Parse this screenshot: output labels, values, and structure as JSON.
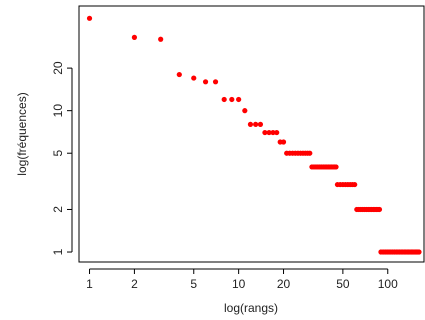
{
  "chart_data": {
    "type": "scatter",
    "xlabel": "log(rangs)",
    "ylabel": "log(fréquences)",
    "x_scale": "log",
    "y_scale": "log",
    "xlim": [
      0.85,
      175
    ],
    "ylim": [
      0.85,
      55
    ],
    "x_ticks": [
      1,
      2,
      5,
      10,
      20,
      50,
      100
    ],
    "y_ticks": [
      1,
      2,
      5,
      10,
      20
    ],
    "grid": false,
    "point_color": "#ff0000",
    "points": [
      {
        "x": 1,
        "y": 45
      },
      {
        "x": 2,
        "y": 33
      },
      {
        "x": 3,
        "y": 32
      },
      {
        "x": 4,
        "y": 18
      },
      {
        "x": 5,
        "y": 17
      },
      {
        "x": 6,
        "y": 16
      },
      {
        "x": 7,
        "y": 16
      },
      {
        "x": 8,
        "y": 12
      },
      {
        "x": 9,
        "y": 12
      },
      {
        "x": 10,
        "y": 12
      },
      {
        "x": 11,
        "y": 10
      },
      {
        "x": 12,
        "y": 8
      },
      {
        "x": 13,
        "y": 8
      },
      {
        "x": 14,
        "y": 8
      },
      {
        "x": 15,
        "y": 7
      },
      {
        "x": 16,
        "y": 7
      },
      {
        "x": 17,
        "y": 7
      },
      {
        "x": 18,
        "y": 7
      },
      {
        "x": 19,
        "y": 6
      },
      {
        "x": 20,
        "y": 6
      },
      {
        "x": 21,
        "y": 5
      },
      {
        "x": 22,
        "y": 5
      },
      {
        "x": 23,
        "y": 5
      },
      {
        "x": 24,
        "y": 5
      },
      {
        "x": 25,
        "y": 5
      },
      {
        "x": 26,
        "y": 5
      },
      {
        "x": 27,
        "y": 5
      },
      {
        "x": 28,
        "y": 5
      },
      {
        "x": 29,
        "y": 5
      },
      {
        "x": 30,
        "y": 5
      },
      {
        "x": 31,
        "y": 4
      },
      {
        "x": 32,
        "y": 4
      },
      {
        "x": 33,
        "y": 4
      },
      {
        "x": 34,
        "y": 4
      },
      {
        "x": 35,
        "y": 4
      },
      {
        "x": 36,
        "y": 4
      },
      {
        "x": 37,
        "y": 4
      },
      {
        "x": 38,
        "y": 4
      },
      {
        "x": 39,
        "y": 4
      },
      {
        "x": 40,
        "y": 4
      },
      {
        "x": 41,
        "y": 4
      },
      {
        "x": 42,
        "y": 4
      },
      {
        "x": 43,
        "y": 4
      },
      {
        "x": 44,
        "y": 4
      },
      {
        "x": 45,
        "y": 4
      },
      {
        "x": 46,
        "y": 3
      },
      {
        "x": 48,
        "y": 3
      },
      {
        "x": 50,
        "y": 3
      },
      {
        "x": 52,
        "y": 3
      },
      {
        "x": 54,
        "y": 3
      },
      {
        "x": 56,
        "y": 3
      },
      {
        "x": 58,
        "y": 3
      },
      {
        "x": 60,
        "y": 3
      },
      {
        "x": 62,
        "y": 2
      },
      {
        "x": 64,
        "y": 2
      },
      {
        "x": 66,
        "y": 2
      },
      {
        "x": 68,
        "y": 2
      },
      {
        "x": 70,
        "y": 2
      },
      {
        "x": 72,
        "y": 2
      },
      {
        "x": 74,
        "y": 2
      },
      {
        "x": 76,
        "y": 2
      },
      {
        "x": 78,
        "y": 2
      },
      {
        "x": 80,
        "y": 2
      },
      {
        "x": 82,
        "y": 2
      },
      {
        "x": 84,
        "y": 2
      },
      {
        "x": 86,
        "y": 2
      },
      {
        "x": 88,
        "y": 2
      },
      {
        "x": 90,
        "y": 1
      },
      {
        "x": 93,
        "y": 1
      },
      {
        "x": 96,
        "y": 1
      },
      {
        "x": 99,
        "y": 1
      },
      {
        "x": 102,
        "y": 1
      },
      {
        "x": 105,
        "y": 1
      },
      {
        "x": 108,
        "y": 1
      },
      {
        "x": 111,
        "y": 1
      },
      {
        "x": 114,
        "y": 1
      },
      {
        "x": 117,
        "y": 1
      },
      {
        "x": 120,
        "y": 1
      },
      {
        "x": 123,
        "y": 1
      },
      {
        "x": 126,
        "y": 1
      },
      {
        "x": 129,
        "y": 1
      },
      {
        "x": 132,
        "y": 1
      },
      {
        "x": 135,
        "y": 1
      },
      {
        "x": 138,
        "y": 1
      },
      {
        "x": 141,
        "y": 1
      },
      {
        "x": 144,
        "y": 1
      },
      {
        "x": 147,
        "y": 1
      },
      {
        "x": 150,
        "y": 1
      },
      {
        "x": 153,
        "y": 1
      },
      {
        "x": 156,
        "y": 1
      },
      {
        "x": 159,
        "y": 1
      },
      {
        "x": 162,
        "y": 1
      }
    ]
  }
}
